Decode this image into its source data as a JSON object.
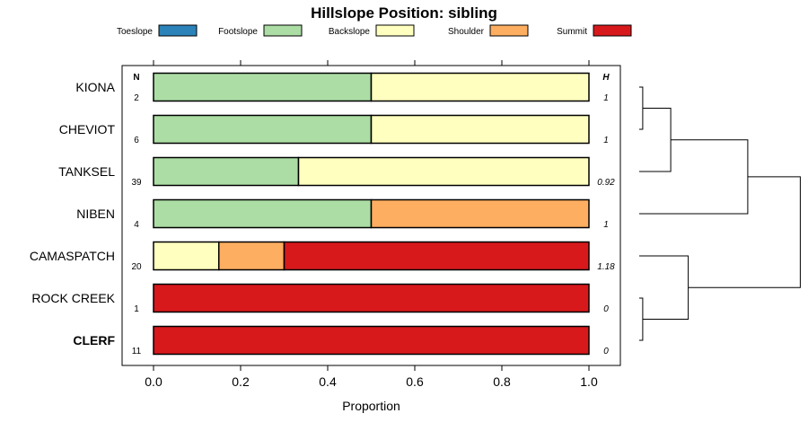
{
  "chart_data": {
    "type": "bar",
    "stacked": true,
    "orientation": "horizontal",
    "title": "Hillslope Position: sibling",
    "xlabel": "Proportion",
    "xlim": [
      0,
      1
    ],
    "xticks": [
      "0.0",
      "0.2",
      "0.4",
      "0.6",
      "0.8",
      "1.0"
    ],
    "legend_position": "top",
    "n_header": "N",
    "h_header": "H",
    "legend": [
      {
        "name": "Toeslope",
        "color": "#2B83BA"
      },
      {
        "name": "Footslope",
        "color": "#ABDDA4"
      },
      {
        "name": "Backslope",
        "color": "#FFFFBF"
      },
      {
        "name": "Shoulder",
        "color": "#FDAE61"
      },
      {
        "name": "Summit",
        "color": "#D7191C"
      }
    ],
    "rows": [
      {
        "label": "KIONA",
        "bold": false,
        "n": "2",
        "h": "1",
        "values": [
          0,
          0.5,
          0.5,
          0,
          0
        ]
      },
      {
        "label": "CHEVIOT",
        "bold": false,
        "n": "6",
        "h": "1",
        "values": [
          0,
          0.5,
          0.5,
          0,
          0
        ]
      },
      {
        "label": "TANKSEL",
        "bold": false,
        "n": "39",
        "h": "0.92",
        "values": [
          0,
          0.333,
          0.667,
          0,
          0
        ]
      },
      {
        "label": "NIBEN",
        "bold": false,
        "n": "4",
        "h": "1",
        "values": [
          0,
          0.5,
          0,
          0.5,
          0
        ]
      },
      {
        "label": "CAMASPATCH",
        "bold": false,
        "n": "20",
        "h": "1.18",
        "values": [
          0,
          0,
          0.15,
          0.15,
          0.7
        ]
      },
      {
        "label": "ROCK CREEK",
        "bold": false,
        "n": "1",
        "h": "0",
        "values": [
          0,
          0,
          0,
          0,
          1
        ]
      },
      {
        "label": "CLERF",
        "bold": true,
        "n": "11",
        "h": "0",
        "values": [
          0,
          0,
          0,
          0,
          1
        ]
      }
    ],
    "dendrogram": {
      "merges": [
        [
          0,
          1
        ],
        [
          7,
          2
        ],
        [
          8,
          3
        ],
        [
          5,
          6
        ],
        [
          4,
          10
        ],
        [
          9,
          11
        ]
      ],
      "heights": [
        0.05,
        0.45,
        1.55,
        0.05,
        0.7,
        2.3
      ]
    }
  }
}
